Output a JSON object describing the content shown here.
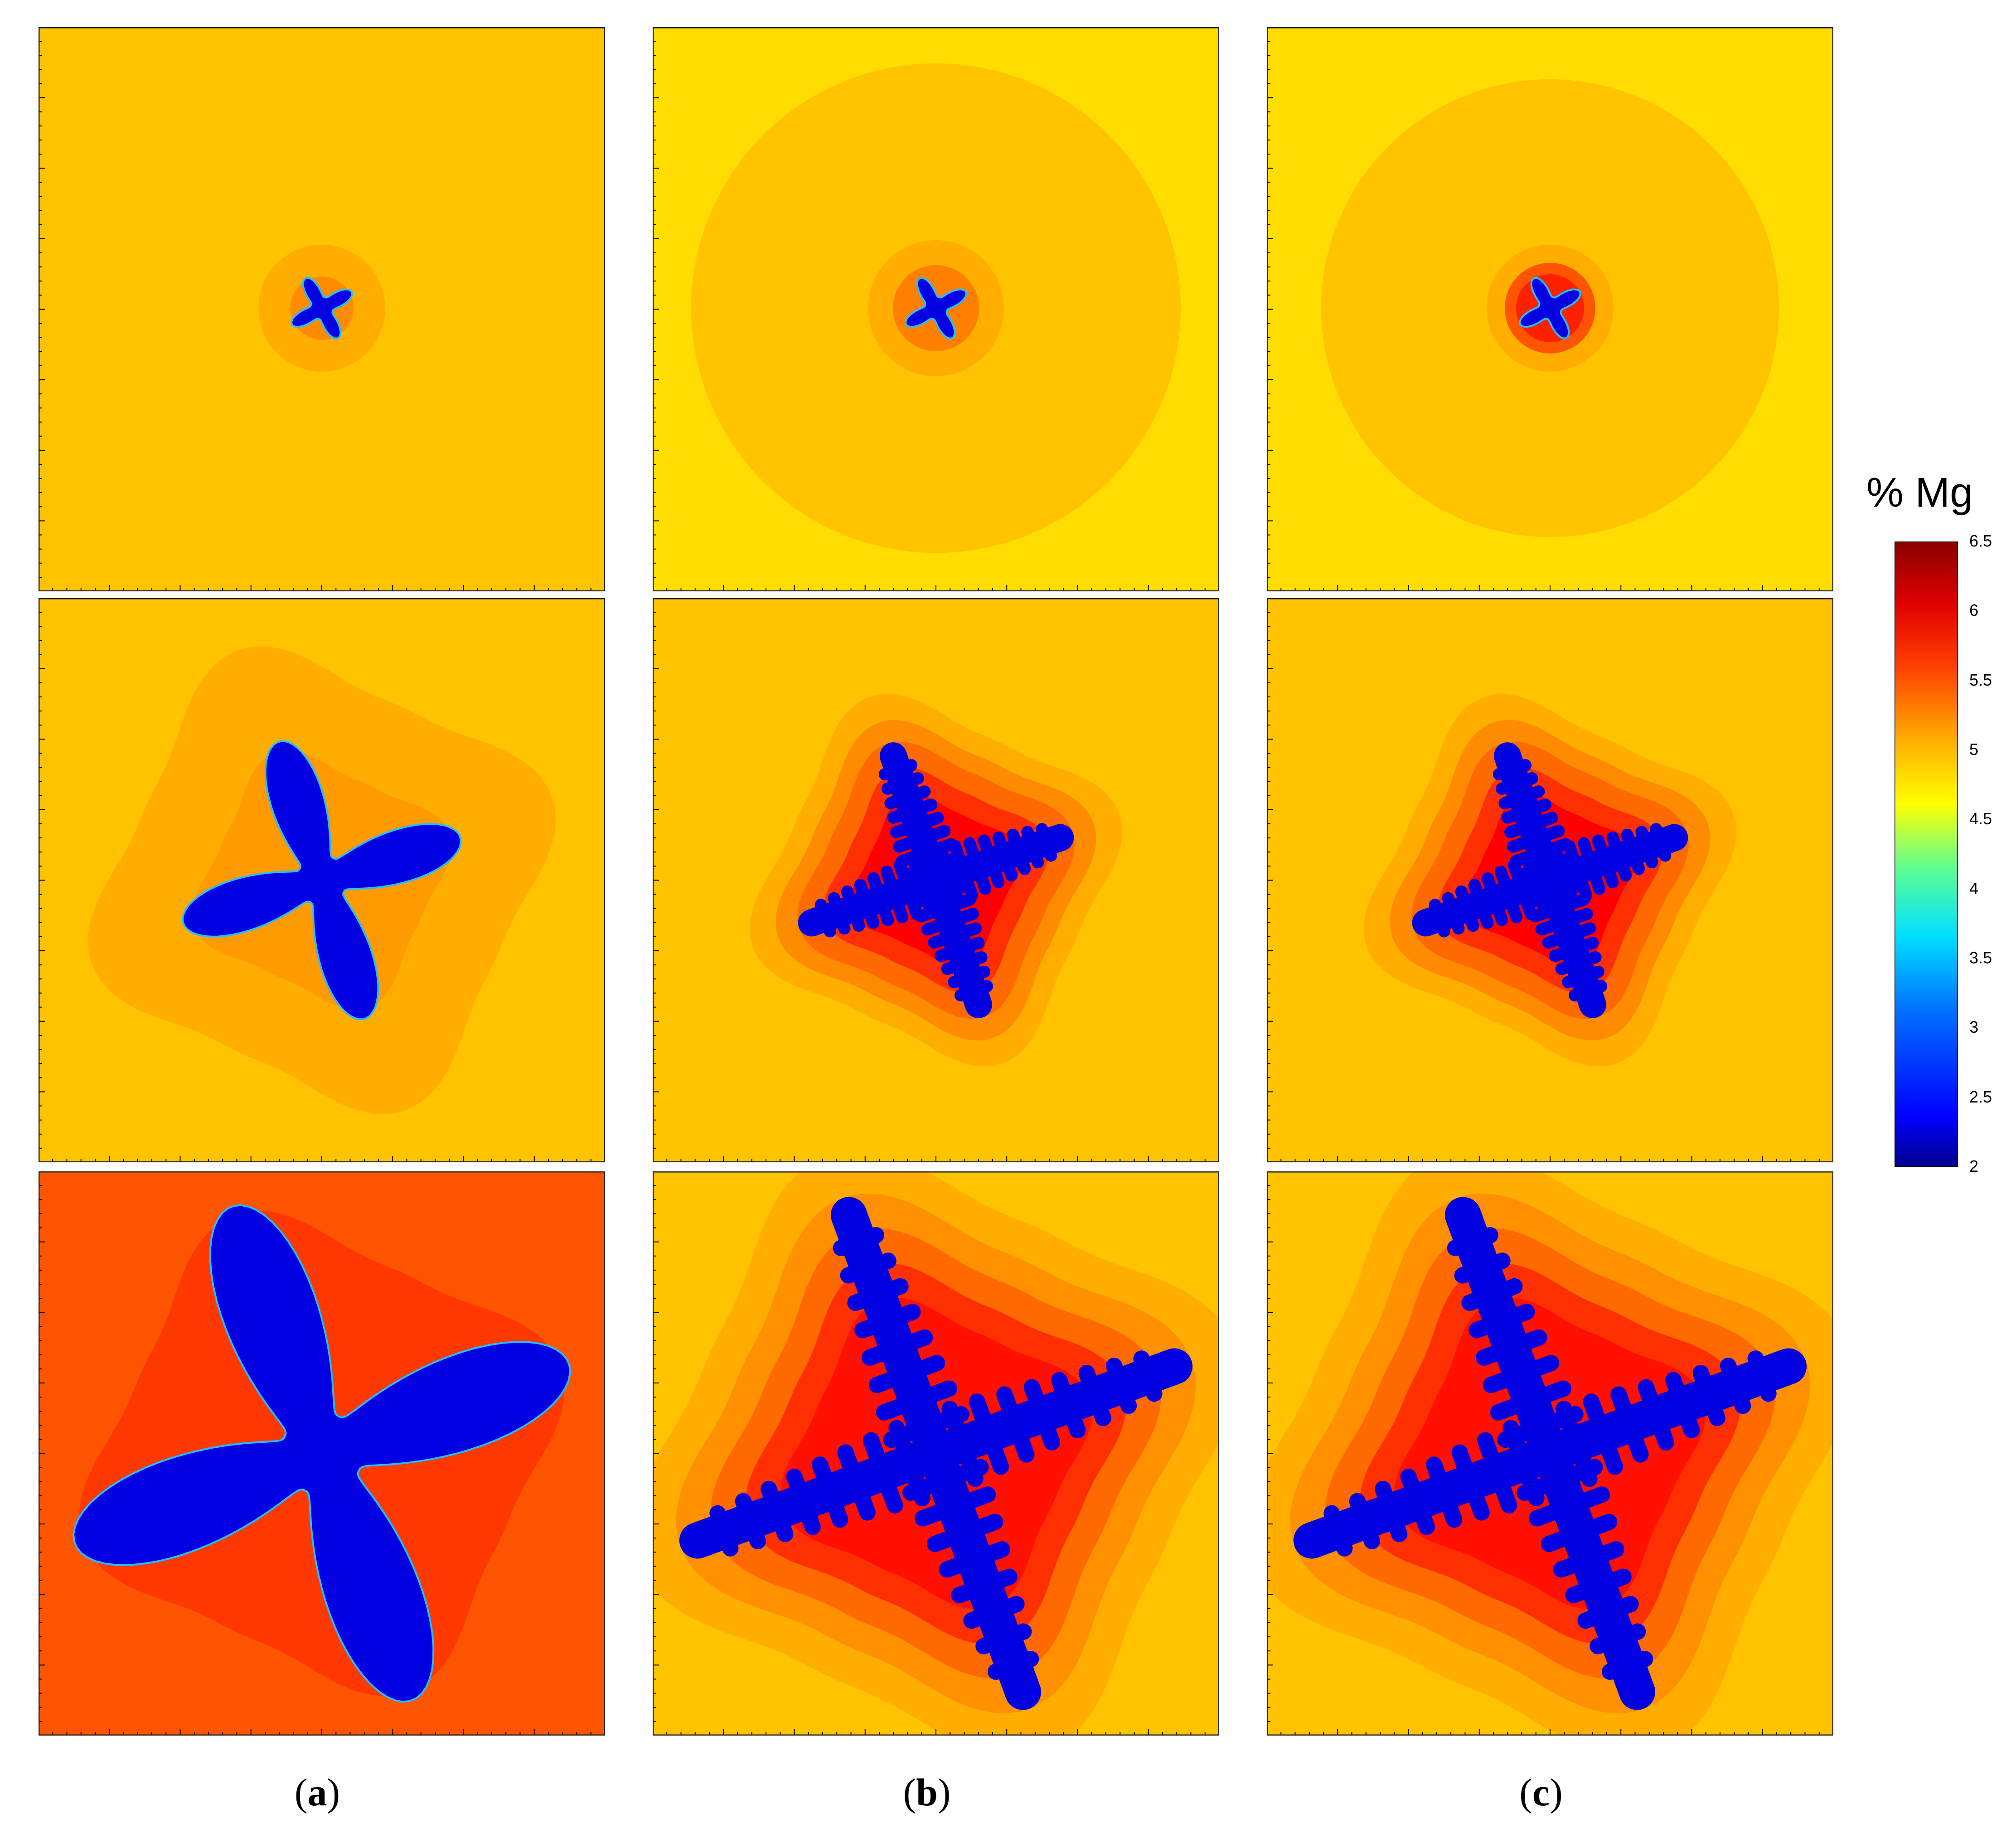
{
  "captions": [
    {
      "open": "(",
      "letter": "a",
      "close": ")"
    },
    {
      "open": "(",
      "letter": "b",
      "close": ")"
    },
    {
      "open": "(",
      "letter": "c",
      "close": ")"
    }
  ],
  "colorbar": {
    "title": "% Mg",
    "ticks": [
      "6.5",
      "6",
      "5.5",
      "5",
      "4.5",
      "4",
      "3.5",
      "3",
      "2.5",
      "2"
    ],
    "min": 2,
    "max": 6.5,
    "colors": [
      "#00008b",
      "#0000ff",
      "#0080ff",
      "#00ffff",
      "#80ff80",
      "#ffff00",
      "#ffb000",
      "#ff6000",
      "#ff0000",
      "#8b0000"
    ]
  },
  "panels": [
    {
      "row": 1,
      "col": "a",
      "description": "small four-arm dendrite, fully orange background"
    },
    {
      "row": 1,
      "col": "b",
      "description": "small four-arm dendrite with large circular diffusion halo"
    },
    {
      "row": 1,
      "col": "c",
      "description": "small four-arm dendrite with large circular diffusion halo"
    },
    {
      "row": 2,
      "col": "a",
      "description": "four-arm smooth dendrite with rounded halo"
    },
    {
      "row": 2,
      "col": "b",
      "description": "four-arm dendrite with side branches and red enriched zone"
    },
    {
      "row": 2,
      "col": "c",
      "description": "four-arm dendrite with side branches and red enriched zone"
    },
    {
      "row": 3,
      "col": "a",
      "description": "large smooth four-arm dendrite in red-orange liquid"
    },
    {
      "row": 3,
      "col": "b",
      "description": "large branched dendrite"
    },
    {
      "row": 3,
      "col": "c",
      "description": "large branched dendrite"
    }
  ]
}
